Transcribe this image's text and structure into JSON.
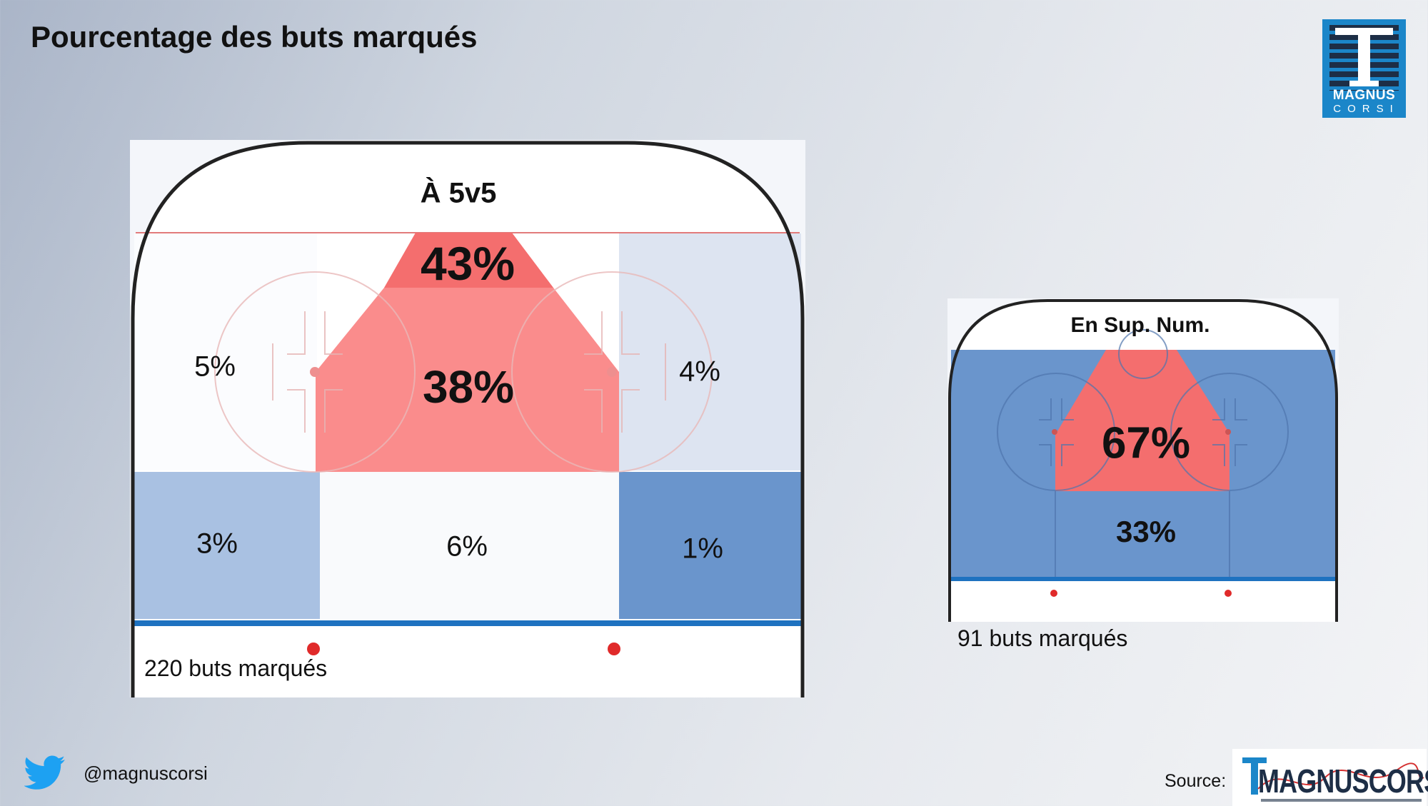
{
  "title": "Pourcentage des buts marqués",
  "logo_top": {
    "line1": "MAGNUS",
    "line2": "CORSI"
  },
  "panel_5v5": {
    "heading": "À 5v5",
    "zones": {
      "slot_top": "43%",
      "slot_mid": "38%",
      "left_circle": "5%",
      "right_circle": "4%",
      "left_point": "3%",
      "center_point": "6%",
      "right_point": "1%"
    },
    "caption": "220 buts marqués"
  },
  "panel_pp": {
    "heading": "En Sup. Num.",
    "zones": {
      "slot": "67%",
      "point": "33%"
    },
    "caption": "91 buts marqués"
  },
  "footer": {
    "handle": "@magnuscorsi",
    "source_label": "Source:",
    "source_logo": "MAGNUSCORSI"
  },
  "colors": {
    "heat_high": "#f46e6e",
    "heat_mid": "#fa8c8c",
    "blue_light": "#a9c1e2",
    "blue_mid": "#6a95cc",
    "blue_pale": "#dde4f1",
    "blue_line": "#1e72c0",
    "board": "#222222"
  }
}
